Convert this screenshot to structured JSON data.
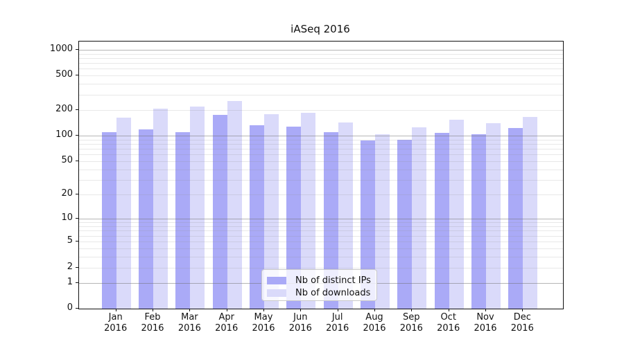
{
  "title": "iASeq 2016",
  "chart_data": {
    "type": "bar",
    "scale": "log1p",
    "title": "iASeq 2016",
    "xlabel": "",
    "ylabel": "",
    "grid": "on",
    "legend_position": "lower center",
    "ylim": [
      0,
      1240
    ],
    "y_ticks": [
      1000,
      500,
      200,
      100,
      50,
      20,
      10,
      5,
      2,
      1,
      0
    ],
    "categories": [
      {
        "month": "Jan",
        "year": "2016"
      },
      {
        "month": "Feb",
        "year": "2016"
      },
      {
        "month": "Mar",
        "year": "2016"
      },
      {
        "month": "Apr",
        "year": "2016"
      },
      {
        "month": "May",
        "year": "2016"
      },
      {
        "month": "Jun",
        "year": "2016"
      },
      {
        "month": "Jul",
        "year": "2016"
      },
      {
        "month": "Aug",
        "year": "2016"
      },
      {
        "month": "Sep",
        "year": "2016"
      },
      {
        "month": "Oct",
        "year": "2016"
      },
      {
        "month": "Nov",
        "year": "2016"
      },
      {
        "month": "Dec",
        "year": "2016"
      }
    ],
    "series": [
      {
        "name": "Nb of distinct IPs",
        "color": "#aaaaf7",
        "values": [
          109,
          118,
          110,
          176,
          133,
          127,
          109,
          88,
          90,
          107,
          103,
          124
        ]
      },
      {
        "name": "Nb of downloads",
        "color": "#dadafa",
        "values": [
          162,
          208,
          220,
          254,
          177,
          185,
          142,
          103,
          125,
          154,
          139,
          165
        ]
      }
    ]
  },
  "colors": {
    "major_gridline": "#6e6e6e",
    "minor_gridline": "#8c8c8c",
    "axis": "#111111",
    "legend_border": "#c9c9c9"
  }
}
